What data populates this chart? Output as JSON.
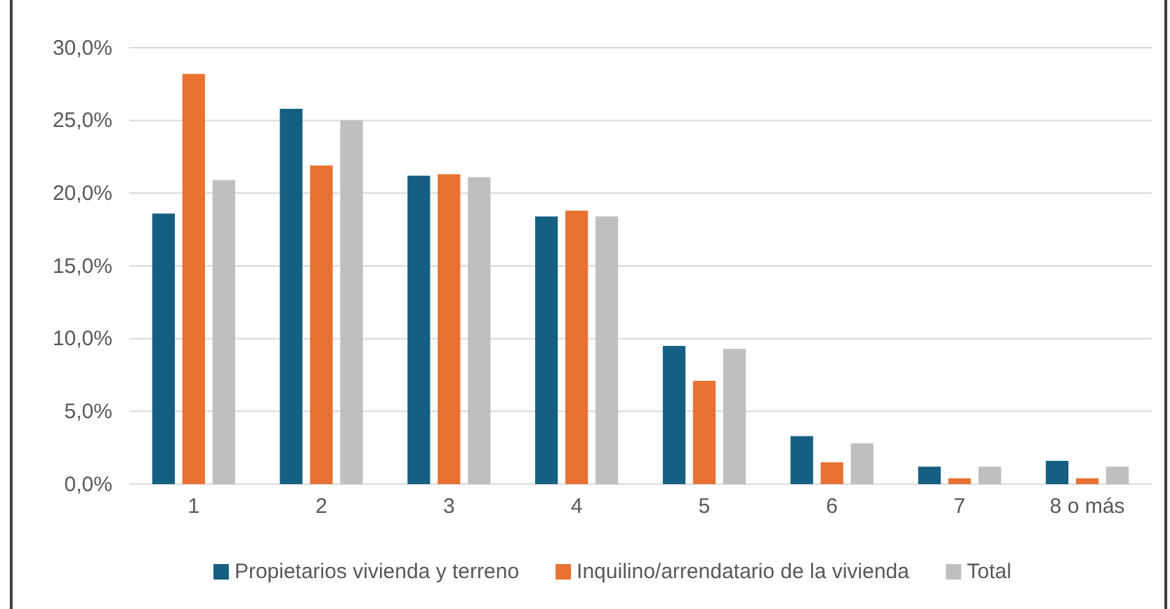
{
  "chart_data": {
    "type": "bar",
    "categories": [
      "1",
      "2",
      "3",
      "4",
      "5",
      "6",
      "7",
      "8 o más"
    ],
    "series": [
      {
        "name": "Propietarios vivienda y terreno",
        "color": "#155f82",
        "values": [
          18.6,
          25.8,
          21.2,
          18.4,
          9.5,
          3.3,
          1.2,
          1.6
        ]
      },
      {
        "name": "Inquilino/arrendatario de la vivienda",
        "color": "#e97132",
        "values": [
          28.2,
          21.9,
          21.3,
          18.8,
          7.1,
          1.5,
          0.4,
          0.4
        ]
      },
      {
        "name": "Total",
        "color": "#bfbfbf",
        "values": [
          20.9,
          25.0,
          21.1,
          18.4,
          9.3,
          2.8,
          1.2,
          1.2
        ]
      }
    ],
    "ylim": [
      0,
      30
    ],
    "yticks": [
      {
        "value": 0,
        "label": "0,0%"
      },
      {
        "value": 5,
        "label": "5,0%"
      },
      {
        "value": 10,
        "label": "10,0%"
      },
      {
        "value": 15,
        "label": "15,0%"
      },
      {
        "value": 20,
        "label": "20,0%"
      },
      {
        "value": 25,
        "label": "25,0%"
      },
      {
        "value": 30,
        "label": "30,0%"
      }
    ],
    "grid": "y",
    "legend": "bottom"
  }
}
